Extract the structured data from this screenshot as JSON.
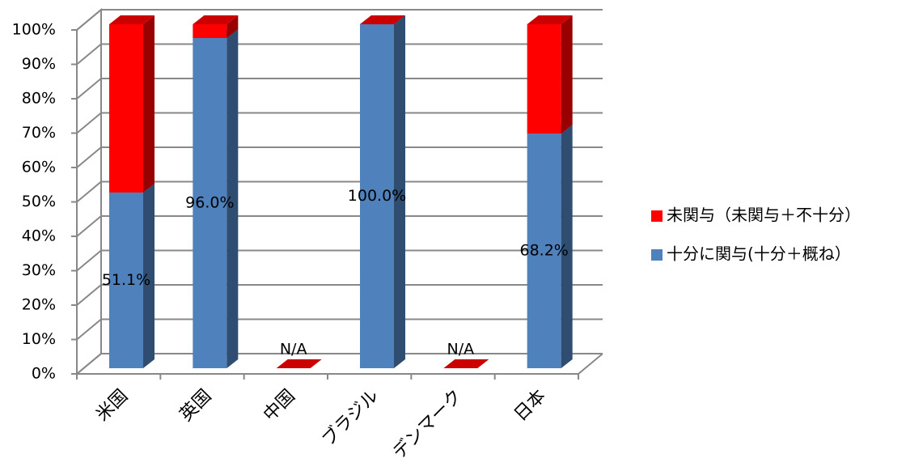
{
  "chart_data": {
    "type": "bar3d_stacked",
    "categories": [
      "米国",
      "英国",
      "中国",
      "ブラジル",
      "デンマーク",
      "日本"
    ],
    "series": [
      {
        "name": "十分に関与(十分＋概ね）",
        "color": "#4f81bd",
        "values": [
          51.1,
          96.0,
          null,
          100.0,
          null,
          68.2
        ],
        "value_labels": [
          "51.1%",
          "96.0%",
          "N/A",
          "100.0%",
          "N/A",
          "68.2%"
        ]
      },
      {
        "name": "未関与（未関与＋不十分）",
        "color": "#ff0000",
        "values": [
          48.9,
          4.0,
          0,
          0,
          0,
          31.8
        ]
      }
    ],
    "ylim": [
      0,
      100
    ],
    "yticks": [
      {
        "value": 0,
        "label": "0%"
      },
      {
        "value": 10,
        "label": "10%"
      },
      {
        "value": 20,
        "label": "20%"
      },
      {
        "value": 30,
        "label": "30%"
      },
      {
        "value": 40,
        "label": "40%"
      },
      {
        "value": 50,
        "label": "50%"
      },
      {
        "value": 60,
        "label": "60%"
      },
      {
        "value": 70,
        "label": "70%"
      },
      {
        "value": 80,
        "label": "80%"
      },
      {
        "value": 90,
        "label": "90%"
      },
      {
        "value": 100,
        "label": "100%"
      }
    ],
    "grid": true,
    "legend": "right"
  }
}
